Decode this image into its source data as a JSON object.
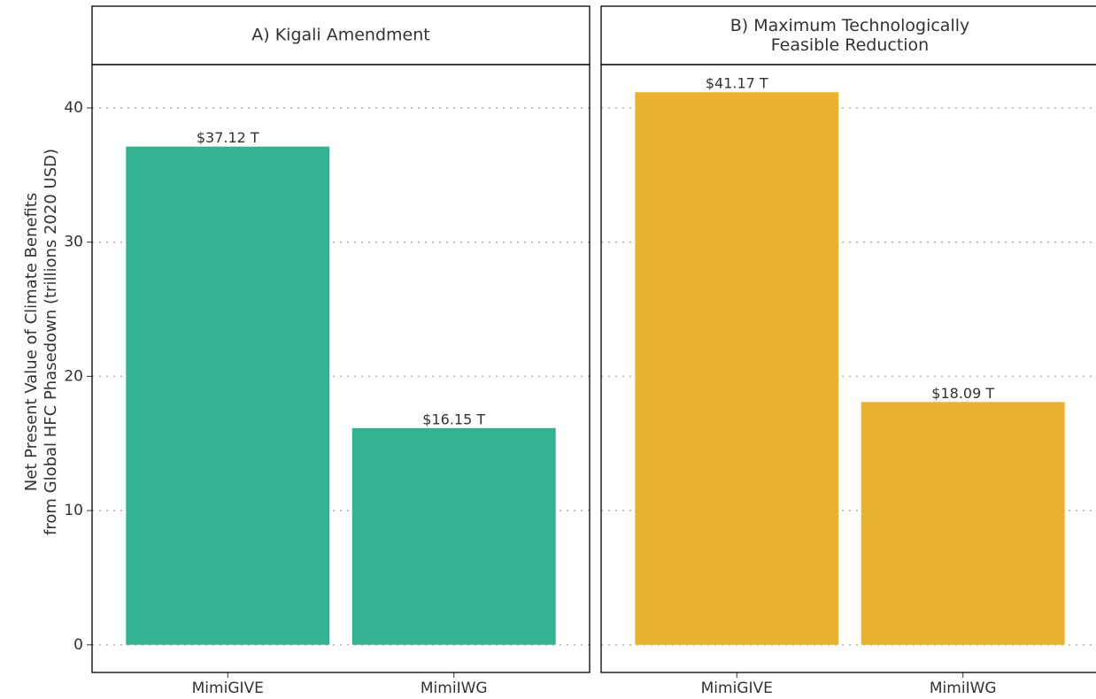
{
  "chart_data": [
    {
      "type": "bar",
      "title": "A) Kigali Amendment",
      "y_label": "Net Present Value of Climate Benefits\nfrom Global HFC Phasedown (trillions 2020 USD)",
      "categories": [
        "MimiGIVE",
        "MimiIWG"
      ],
      "values": [
        37.12,
        16.15
      ],
      "value_labels": [
        "$37.12 T",
        "$16.15 T"
      ],
      "color": "#34b18f",
      "ylim": [
        -2.06,
        43.23
      ],
      "yticks": [
        0,
        10,
        20,
        30,
        40
      ],
      "grid": true
    },
    {
      "type": "bar",
      "title": "B) Maximum Technologically\nFeasible Reduction",
      "categories": [
        "MimiGIVE",
        "MimiIWG"
      ],
      "values": [
        41.17,
        18.09
      ],
      "value_labels": [
        "$41.17 T",
        "$18.09 T"
      ],
      "color": "#eab133",
      "ylim": [
        -2.06,
        43.23
      ],
      "yticks": [
        0,
        10,
        20,
        30,
        40
      ],
      "grid": true
    }
  ]
}
